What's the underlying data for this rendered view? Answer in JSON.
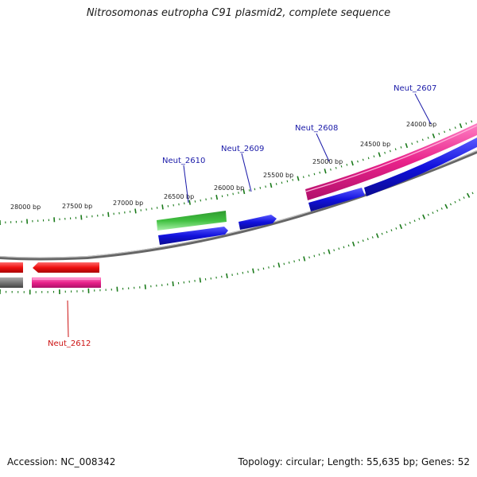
{
  "title": "Nitrosomonas eutropha C91 plasmid2, complete sequence",
  "footer": {
    "accession": "Accession: NC_008342",
    "topology": "Topology: circular; Length: 55,635 bp; Genes: 52"
  },
  "colors": {
    "backbone": "#888888",
    "tick": "#1a7a1a",
    "gene_label_blue": "#1a1aa8",
    "gene_label_red": "#cc1111",
    "cds_magenta": "#e8228a",
    "cds_blue": "#1111dd",
    "cds_red": "#ee1111",
    "cds_green": "#33bb33",
    "cds_gray": "#777777"
  },
  "ruler_labels": [
    "24000 bp",
    "24500 bp",
    "25000 bp",
    "25500 bp",
    "26000 bp",
    "26500 bp",
    "27000 bp",
    "27500 bp",
    "28000 bp"
  ],
  "gene_labels": [
    {
      "text": "Neut_2607",
      "color": "blue"
    },
    {
      "text": "Neut_2608",
      "color": "blue"
    },
    {
      "text": "Neut_2609",
      "color": "blue"
    },
    {
      "text": "Neut_2610",
      "color": "blue"
    },
    {
      "text": "Neut_2612",
      "color": "red"
    }
  ]
}
